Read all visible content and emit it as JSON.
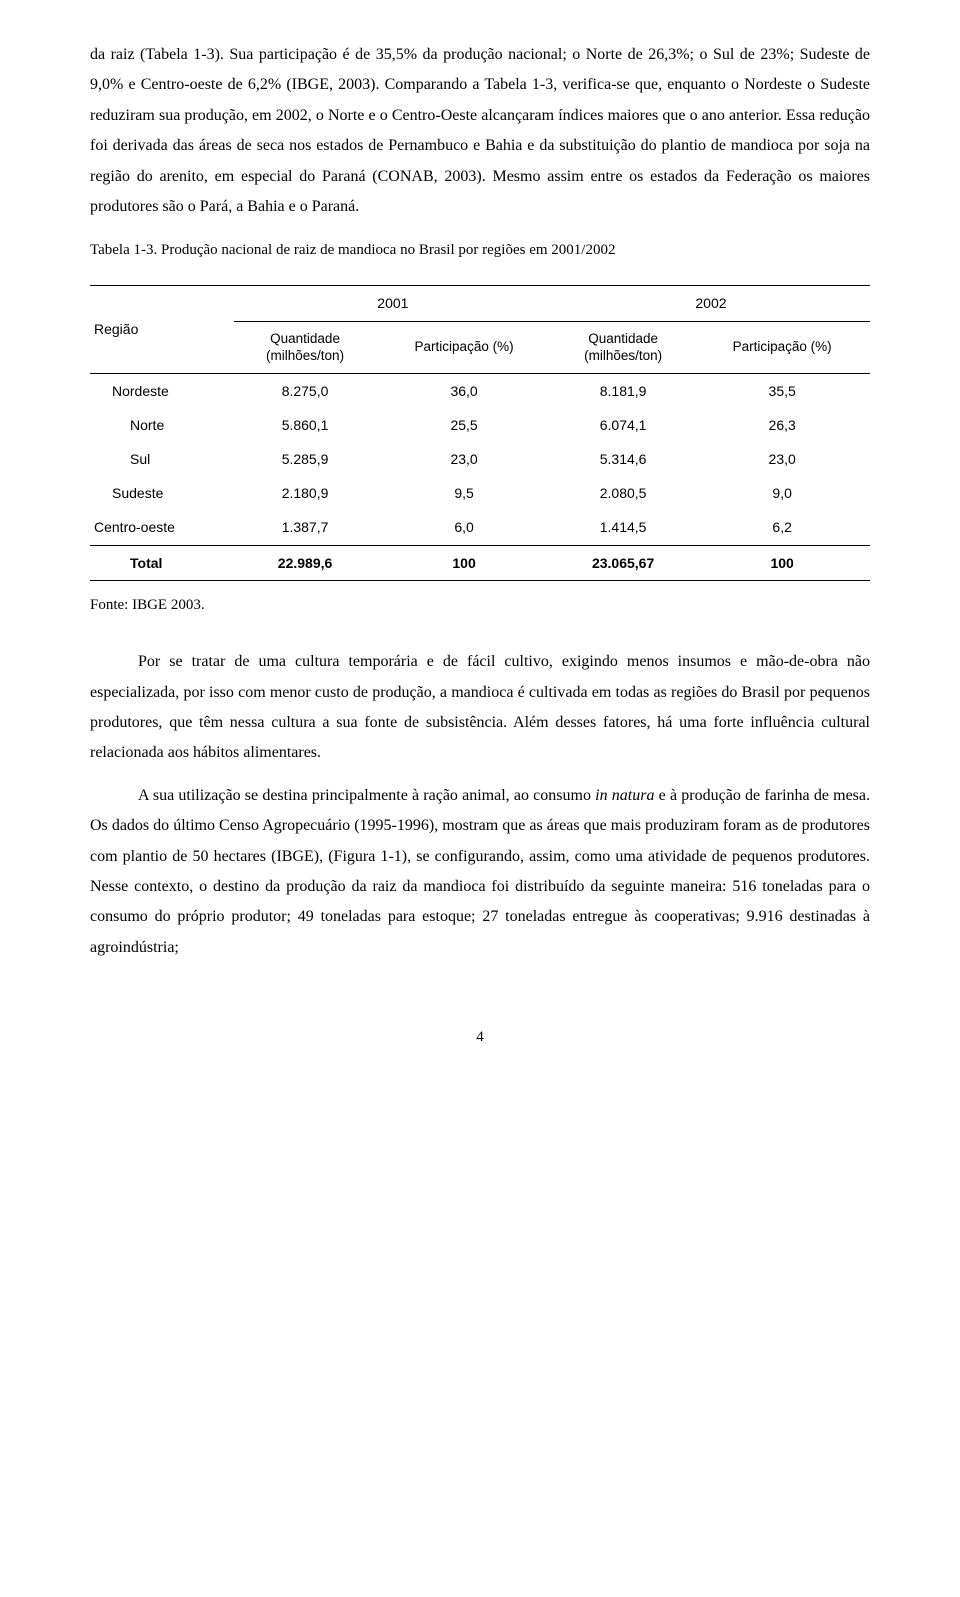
{
  "para1": "da raiz (Tabela 1-3). Sua participação é de 35,5% da produção nacional; o Norte de 26,3%; o Sul de 23%; Sudeste de 9,0% e Centro-oeste de 6,2% (IBGE, 2003). Comparando a Tabela 1-3, verifica-se que, enquanto o Nordeste o Sudeste reduziram sua produção, em 2002, o Norte e o Centro-Oeste alcançaram índices maiores que o ano anterior. Essa redução foi derivada das áreas de seca nos estados de Pernambuco e Bahia e da substituição do plantio de mandioca por soja na região do arenito, em especial do Paraná (CONAB, 2003). Mesmo assim entre os estados da Federação os maiores produtores são o Pará, a Bahia e o Paraná.",
  "table_caption": "Tabela 1-3. Produção nacional de raiz de mandioca no Brasil por regiões em 2001/2002",
  "table": {
    "col_regiao": "Região",
    "year_2001": "2001",
    "year_2002": "2002",
    "qty_label_line1": "Quantidade",
    "qty_label_line2": "(milhões/ton)",
    "part_label": "Participação (%)",
    "rows": [
      {
        "regiao": "Nordeste",
        "indent": 1,
        "q1": "8.275,0",
        "p1": "36,0",
        "q2": "8.181,9",
        "p2": "35,5"
      },
      {
        "regiao": "Norte",
        "indent": 2,
        "q1": "5.860,1",
        "p1": "25,5",
        "q2": "6.074,1",
        "p2": "26,3"
      },
      {
        "regiao": "Sul",
        "indent": 2,
        "q1": "5.285,9",
        "p1": "23,0",
        "q2": "5.314,6",
        "p2": "23,0"
      },
      {
        "regiao": "Sudeste",
        "indent": 1,
        "q1": "2.180,9",
        "p1": "9,5",
        "q2": "2.080,5",
        "p2": "9,0"
      },
      {
        "regiao": "Centro-oeste",
        "indent": 0,
        "q1": "1.387,7",
        "p1": "6,0",
        "q2": "1.414,5",
        "p2": "6,2"
      }
    ],
    "total": {
      "regiao": "Total",
      "q1": "22.989,6",
      "p1": "100",
      "q2": "23.065,67",
      "p2": "100"
    }
  },
  "source": "Fonte: IBGE 2003.",
  "para2": "Por se tratar de uma cultura temporária e de fácil cultivo, exigindo menos insumos e mão-de-obra não especializada, por isso com menor custo de produção, a mandioca é cultivada em todas as regiões do Brasil por pequenos produtores, que têm nessa cultura a sua fonte de subsistência. Além desses fatores, há uma forte influência cultural relacionada aos hábitos alimentares.",
  "para3_a": "A sua utilização se destina principalmente à ração animal, ao consumo ",
  "para3_em": "in natura",
  "para3_b": " e à produção de farinha de mesa. Os dados do último Censo Agropecuário (1995-1996), mostram que as áreas que mais produziram foram as de produtores com plantio de 50 hectares (IBGE), (Figura 1-1), se configurando, assim, como uma atividade de pequenos produtores. Nesse contexto, o destino da produção da raiz da mandioca foi distribuído da seguinte maneira: 516 toneladas para o consumo do próprio produtor; 49 toneladas para estoque; 27 toneladas entregue às cooperativas; 9.916 destinadas à agroindústria;",
  "page_number": "4"
}
